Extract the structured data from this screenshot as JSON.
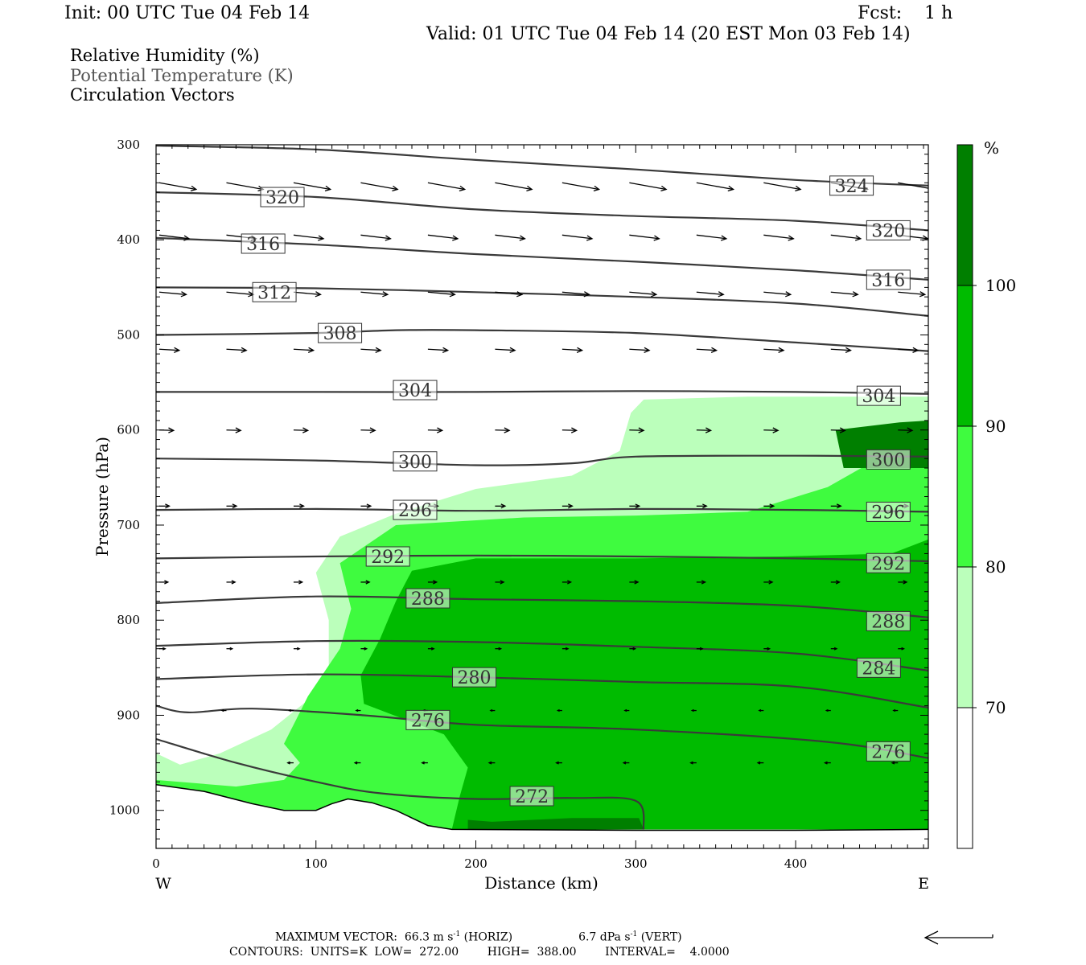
{
  "header": {
    "init": "Init: 00 UTC Tue 04 Feb 14",
    "fcst": "Fcst:    1 h",
    "valid": "Valid: 01 UTC Tue 04 Feb 14 (20 EST Mon 03 Feb 14)"
  },
  "legend": {
    "items": [
      {
        "label": "Relative Humidity (%)",
        "color": "#000000"
      },
      {
        "label": "Potential Temperature (K)",
        "color": "#555555"
      },
      {
        "label": "Circulation Vectors",
        "color": "#000000"
      }
    ]
  },
  "footer": {
    "max_vector_prefix": "MAXIMUM VECTOR:  66.3 m s",
    "exp": "-1",
    "horiz_suffix": " (HORIZ)",
    "vert_prefix": "6.7 dPa s",
    "vert_suffix": " (VERT)",
    "contours": "CONTOURS:  UNITS=K  LOW=  272.00        HIGH=  388.00        INTERVAL=    4.0000"
  },
  "chart_data": {
    "type": "cross-section",
    "xlabel": "Distance (km)",
    "ylabel": "Pressure (hPa)",
    "xlim": [
      0,
      483
    ],
    "ylim": [
      1040,
      300
    ],
    "x_ticks": [
      0,
      100,
      200,
      300,
      400
    ],
    "y_ticks": [
      300,
      400,
      500,
      600,
      700,
      800,
      900,
      1000
    ],
    "x_end_labels": {
      "left": "W",
      "right": "E"
    },
    "colorbar": {
      "unit": "%",
      "levels": [
        70,
        80,
        90,
        100
      ],
      "colors": [
        "#ffffff",
        "#bbffbb",
        "#3ffb3f",
        "#00bb00",
        "#007f00"
      ]
    },
    "rh_fields": [
      {
        "level": 70,
        "color": "#bbffbb",
        "polygon": [
          [
            0,
            940
          ],
          [
            15,
            952
          ],
          [
            40,
            940
          ],
          [
            72,
            915
          ],
          [
            98,
            880
          ],
          [
            108,
            850
          ],
          [
            108,
            800
          ],
          [
            100,
            750
          ],
          [
            115,
            712
          ],
          [
            150,
            688
          ],
          [
            200,
            662
          ],
          [
            260,
            648
          ],
          [
            290,
            622
          ],
          [
            297,
            582
          ],
          [
            305,
            568
          ],
          [
            370,
            565
          ],
          [
            483,
            565
          ],
          [
            483,
            1020
          ],
          [
            0,
            1020
          ]
        ]
      },
      {
        "level": 80,
        "color": "#3ffb3f",
        "polygon": [
          [
            0,
            948
          ],
          [
            0,
            968
          ],
          [
            50,
            975
          ],
          [
            80,
            968
          ],
          [
            90,
            950
          ],
          [
            80,
            930
          ],
          [
            95,
            880
          ],
          [
            115,
            830
          ],
          [
            122,
            788
          ],
          [
            115,
            740
          ],
          [
            150,
            700
          ],
          [
            230,
            692
          ],
          [
            300,
            690
          ],
          [
            370,
            686
          ],
          [
            420,
            660
          ],
          [
            483,
            600
          ],
          [
            483,
            1020
          ],
          [
            0,
            1020
          ]
        ]
      },
      {
        "level": 90,
        "color": "#00bb00",
        "polygon": [
          [
            185,
            1020
          ],
          [
            190,
            985
          ],
          [
            195,
            955
          ],
          [
            180,
            920
          ],
          [
            130,
            888
          ],
          [
            128,
            858
          ],
          [
            140,
            820
          ],
          [
            150,
            780
          ],
          [
            160,
            748
          ],
          [
            200,
            735
          ],
          [
            300,
            735
          ],
          [
            390,
            733
          ],
          [
            460,
            730
          ],
          [
            483,
            715
          ],
          [
            483,
            1020
          ]
        ]
      },
      {
        "level": 100,
        "color": "#007f00",
        "polygon": [
          [
            483,
            590
          ],
          [
            465,
            592
          ],
          [
            425,
            600
          ],
          [
            430,
            640
          ],
          [
            483,
            640
          ]
        ]
      },
      {
        "level": 100,
        "color": "#007f00",
        "polygon": [
          [
            195,
            1010
          ],
          [
            210,
            1012
          ],
          [
            260,
            1008
          ],
          [
            302,
            1008
          ],
          [
            305,
            1020
          ],
          [
            195,
            1020
          ]
        ]
      }
    ],
    "theta_contours": [
      {
        "value": 272,
        "points": [
          [
            0,
            925
          ],
          [
            50,
            950
          ],
          [
            100,
            970
          ],
          [
            140,
            982
          ],
          [
            200,
            988
          ],
          [
            260,
            987
          ],
          [
            300,
            990
          ],
          [
            305,
            1020
          ]
        ]
      },
      {
        "value": 276,
        "points": [
          [
            0,
            890
          ],
          [
            20,
            897
          ],
          [
            60,
            893
          ],
          [
            130,
            900
          ],
          [
            200,
            910
          ],
          [
            300,
            915
          ],
          [
            420,
            928
          ],
          [
            483,
            945
          ]
        ]
      },
      {
        "value": 280,
        "points": [
          [
            0,
            862
          ],
          [
            100,
            857
          ],
          [
            200,
            860
          ],
          [
            300,
            865
          ],
          [
            400,
            870
          ],
          [
            483,
            892
          ]
        ]
      },
      {
        "value": 284,
        "points": [
          [
            0,
            827
          ],
          [
            100,
            822
          ],
          [
            200,
            823
          ],
          [
            300,
            828
          ],
          [
            400,
            835
          ],
          [
            483,
            853
          ]
        ]
      },
      {
        "value": 288,
        "points": [
          [
            0,
            782
          ],
          [
            100,
            775
          ],
          [
            200,
            778
          ],
          [
            300,
            780
          ],
          [
            400,
            785
          ],
          [
            483,
            797
          ]
        ]
      },
      {
        "value": 292,
        "points": [
          [
            0,
            735
          ],
          [
            100,
            733
          ],
          [
            200,
            732
          ],
          [
            300,
            733
          ],
          [
            400,
            735
          ],
          [
            483,
            738
          ]
        ]
      },
      {
        "value": 296,
        "points": [
          [
            0,
            684
          ],
          [
            100,
            683
          ],
          [
            200,
            685
          ],
          [
            300,
            683
          ],
          [
            400,
            684
          ],
          [
            483,
            686
          ]
        ]
      },
      {
        "value": 300,
        "points": [
          [
            0,
            630
          ],
          [
            100,
            632
          ],
          [
            200,
            637
          ],
          [
            260,
            635
          ],
          [
            300,
            628
          ],
          [
            400,
            627
          ],
          [
            483,
            628
          ]
        ]
      },
      {
        "value": 304,
        "points": [
          [
            0,
            560
          ],
          [
            100,
            560
          ],
          [
            200,
            560
          ],
          [
            300,
            559
          ],
          [
            400,
            560
          ],
          [
            483,
            562
          ]
        ]
      },
      {
        "value": 308,
        "points": [
          [
            0,
            500
          ],
          [
            100,
            498
          ],
          [
            150,
            495
          ],
          [
            200,
            495
          ],
          [
            300,
            498
          ],
          [
            400,
            508
          ],
          [
            483,
            517
          ]
        ]
      },
      {
        "value": 312,
        "points": [
          [
            0,
            450
          ],
          [
            100,
            451
          ],
          [
            200,
            455
          ],
          [
            300,
            460
          ],
          [
            400,
            467
          ],
          [
            483,
            480
          ]
        ]
      },
      {
        "value": 316,
        "points": [
          [
            0,
            398
          ],
          [
            100,
            405
          ],
          [
            200,
            415
          ],
          [
            300,
            423
          ],
          [
            400,
            432
          ],
          [
            483,
            442
          ]
        ]
      },
      {
        "value": 320,
        "points": [
          [
            0,
            350
          ],
          [
            100,
            355
          ],
          [
            200,
            368
          ],
          [
            300,
            375
          ],
          [
            400,
            380
          ],
          [
            483,
            390
          ]
        ]
      },
      {
        "value": 324,
        "points": [
          [
            0,
            301
          ],
          [
            100,
            305
          ],
          [
            200,
            316
          ],
          [
            300,
            326
          ],
          [
            400,
            337
          ],
          [
            483,
            343
          ]
        ]
      }
    ],
    "contour_labels": [
      {
        "text": "320",
        "x": 79,
        "p": 355
      },
      {
        "text": "316",
        "x": 67,
        "p": 404
      },
      {
        "text": "312",
        "x": 74,
        "p": 455
      },
      {
        "text": "308",
        "x": 115,
        "p": 498
      },
      {
        "text": "304",
        "x": 162,
        "p": 558
      },
      {
        "text": "300",
        "x": 162,
        "p": 633
      },
      {
        "text": "296",
        "x": 162,
        "p": 684
      },
      {
        "text": "292",
        "x": 145,
        "p": 733
      },
      {
        "text": "288",
        "x": 170,
        "p": 777
      },
      {
        "text": "280",
        "x": 199,
        "p": 860
      },
      {
        "text": "276",
        "x": 170,
        "p": 905
      },
      {
        "text": "272",
        "x": 235,
        "p": 985
      },
      {
        "text": "324",
        "x": 435,
        "p": 343
      },
      {
        "text": "320",
        "x": 458,
        "p": 390
      },
      {
        "text": "316",
        "x": 458,
        "p": 442
      },
      {
        "text": "304",
        "x": 452,
        "p": 564
      },
      {
        "text": "300",
        "x": 458,
        "p": 631
      },
      {
        "text": "296",
        "x": 458,
        "p": 686
      },
      {
        "text": "292",
        "x": 458,
        "p": 740
      },
      {
        "text": "288",
        "x": 458,
        "p": 801
      },
      {
        "text": "284",
        "x": 452,
        "p": 850
      },
      {
        "text": "276",
        "x": 458,
        "p": 938
      }
    ],
    "terrain": [
      [
        0,
        973
      ],
      [
        30,
        980
      ],
      [
        60,
        993
      ],
      [
        80,
        1000
      ],
      [
        100,
        1000
      ],
      [
        110,
        993
      ],
      [
        120,
        988
      ],
      [
        135,
        992
      ],
      [
        150,
        1000
      ],
      [
        170,
        1016
      ],
      [
        185,
        1020
      ],
      [
        300,
        1021
      ],
      [
        400,
        1021
      ],
      [
        483,
        1020
      ]
    ],
    "vectors": [
      {
        "p": 340,
        "x": [
          0,
          42,
          84,
          126,
          168,
          210,
          252,
          294,
          336,
          378,
          420,
          462
        ],
        "u": 25,
        "v": 0.6
      },
      {
        "p": 395,
        "x": [
          0,
          42,
          84,
          126,
          168,
          210,
          252,
          294,
          336,
          378,
          420,
          462
        ],
        "u": 20,
        "v": 0.4
      },
      {
        "p": 455,
        "x": [
          0,
          42,
          84,
          126,
          168,
          210,
          252,
          294,
          336,
          378,
          420,
          462
        ],
        "u": 18,
        "v": 0.3
      },
      {
        "p": 515,
        "x": [
          0,
          42,
          84,
          126,
          168,
          210,
          252,
          294,
          336,
          378,
          420,
          462
        ],
        "u": 13,
        "v": 0.2
      },
      {
        "p": 600,
        "x": [
          0,
          42,
          84,
          126,
          168,
          210,
          252,
          294,
          336,
          378,
          420,
          462
        ],
        "u": 9,
        "v": 0.1
      },
      {
        "p": 680,
        "x": [
          0,
          42,
          84,
          126,
          168,
          210,
          252,
          294,
          336,
          378,
          420,
          462
        ],
        "u": 6,
        "v": 0
      },
      {
        "p": 760,
        "x": [
          0,
          42,
          84,
          126,
          168,
          210,
          252,
          294,
          336,
          378,
          420,
          462
        ],
        "u": 5,
        "v": 0
      },
      {
        "p": 830,
        "x": [
          0,
          42,
          84,
          126,
          168,
          210,
          252,
          294,
          336,
          378,
          420,
          462
        ],
        "u": 3,
        "v": 0
      },
      {
        "p": 895,
        "x": [
          42,
          84,
          126,
          168,
          210,
          252,
          294,
          336,
          378,
          420,
          462
        ],
        "u": -2,
        "v": 0
      },
      {
        "p": 950,
        "x": [
          84,
          126,
          168,
          210,
          252,
          294,
          336,
          378,
          420,
          462
        ],
        "u": -3,
        "v": 0
      }
    ],
    "reference_vector": {
      "direction": "west"
    }
  }
}
